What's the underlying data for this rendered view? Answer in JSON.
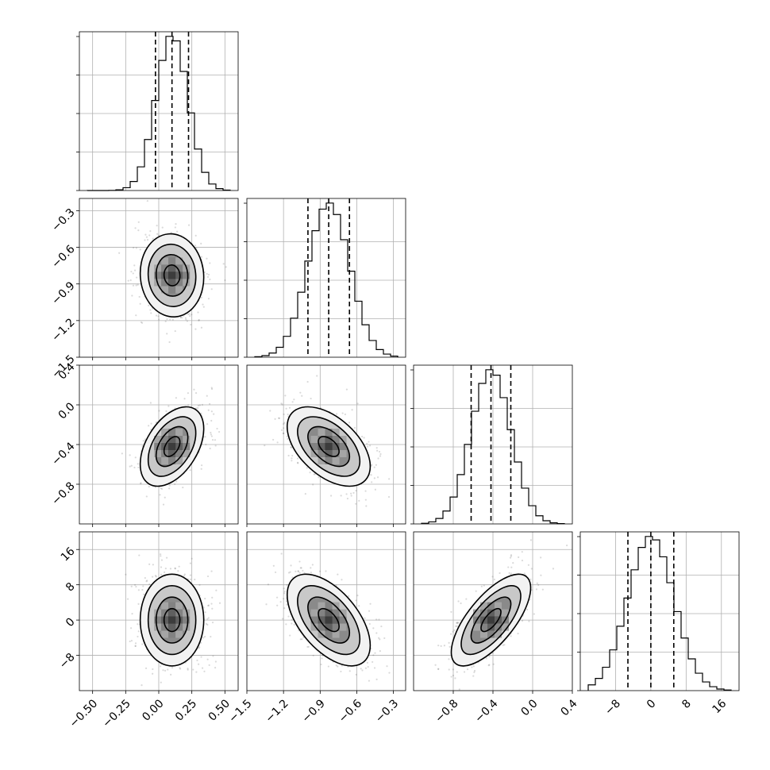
{
  "chart_data": {
    "type": "corner",
    "parameters": [
      {
        "id": "p0",
        "range": [
          -0.6,
          0.6
        ],
        "ticks": [
          -0.5,
          -0.25,
          0.0,
          0.25,
          0.5
        ],
        "tick_labels": [
          "−0.50",
          "−0.25",
          "0.00",
          "0.25",
          "0.50"
        ],
        "mean": 0.1,
        "sigma": 0.12,
        "quantiles": [
          -0.025,
          0.1,
          0.225
        ]
      },
      {
        "id": "p1",
        "range": [
          -1.5,
          -0.2
        ],
        "ticks": [
          -1.5,
          -1.2,
          -0.9,
          -0.6,
          -0.3
        ],
        "tick_labels": [
          "−1.5",
          "−1.2",
          "−0.9",
          "−0.6",
          "−0.3"
        ],
        "mean": -0.83,
        "sigma": 0.17,
        "quantiles": [
          -1.0,
          -0.83,
          -0.66
        ]
      },
      {
        "id": "p2",
        "range": [
          -1.2,
          0.4
        ],
        "ticks": [
          -0.8,
          -0.4,
          0.0,
          0.4
        ],
        "tick_labels": [
          "−0.8",
          "−0.4",
          "0.0",
          "0.4"
        ],
        "mean": -0.42,
        "sigma": 0.2,
        "quantiles": [
          -0.62,
          -0.42,
          -0.22
        ]
      },
      {
        "id": "p3",
        "range": [
          -16,
          20
        ],
        "ticks": [
          -8,
          0,
          8,
          16
        ],
        "tick_labels": [
          "−8",
          "0",
          "8",
          "16"
        ],
        "mean": 0.0,
        "sigma": 5.2,
        "quantiles": [
          -5.2,
          0.0,
          5.2
        ]
      }
    ],
    "correlations": [
      {
        "pair": [
          0,
          1
        ],
        "rho": -0.05
      },
      {
        "pair": [
          0,
          2
        ],
        "rho": 0.45
      },
      {
        "pair": [
          1,
          2
        ],
        "rho": -0.5
      },
      {
        "pair": [
          0,
          3
        ],
        "rho": 0.0
      },
      {
        "pair": [
          1,
          3
        ],
        "rho": -0.55
      },
      {
        "pair": [
          2,
          3
        ],
        "rho": 0.7
      }
    ],
    "histogram_bins": 20,
    "contour_levels_sigma": [
      0.5,
      1.0,
      1.5,
      2.0
    ],
    "grid": true,
    "quantile_lines": "dashed"
  }
}
